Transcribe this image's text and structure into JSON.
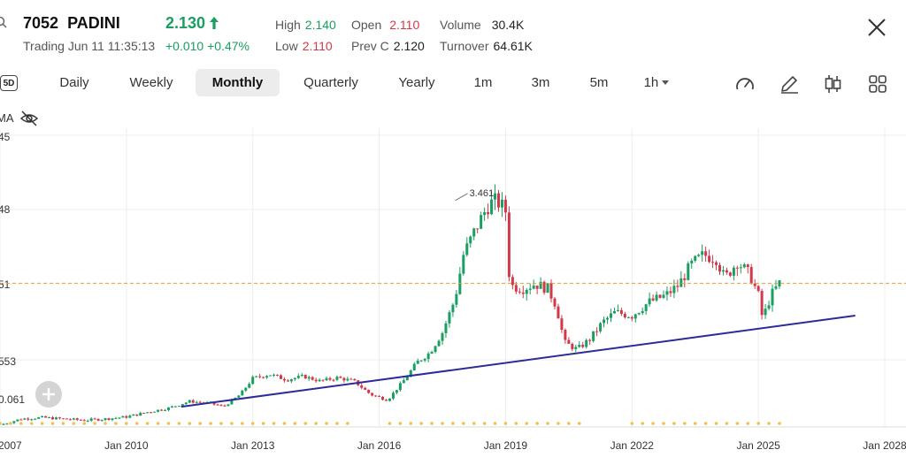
{
  "header": {
    "code": "7052",
    "name": "PADINI",
    "price": "2.130",
    "status": "Trading",
    "datetime": "Jun 11 11:35:13",
    "change": "+0.010",
    "change_pct": "+0.47%",
    "stats": {
      "high_label": "High",
      "high": "2.140",
      "low_label": "Low",
      "low": "2.110",
      "open_label": "Open",
      "open": "2.110",
      "prevc_label": "Prev C",
      "prevc": "2.120",
      "volume_label": "Volume",
      "volume": "30.4K",
      "turnover_label": "Turnover",
      "turnover": "64.61K"
    }
  },
  "toolbar": {
    "badge": "5D",
    "tabs": [
      "Daily",
      "Weekly",
      "Monthly",
      "Quarterly",
      "Yearly",
      "1m",
      "3m",
      "5m",
      "1h"
    ],
    "active_tab": "Monthly"
  },
  "indicator": {
    "label": "MA"
  },
  "colors": {
    "up": "#1a9e61",
    "down": "#d1394a",
    "trendline": "#2b2c96",
    "price_line": "#e3a33a",
    "grid": "#ececec"
  },
  "chart_data": {
    "type": "candlestick",
    "x_ticks": [
      "Jan 2007",
      "Jan 2010",
      "Jan 2013",
      "Jan 2016",
      "Jan 2019",
      "Jan 2022",
      "Jan 2025",
      "Jan 2028"
    ],
    "y_ticks": [
      "45",
      "48",
      "51",
      "553",
      "0.061"
    ],
    "xlim": [
      2007.0,
      2028.5
    ],
    "ylim": [
      0.0,
      4.1
    ],
    "annotation": {
      "label": "3.461",
      "x": 2018.1,
      "y": 3.461
    },
    "current_price": 2.13,
    "trendline": [
      {
        "x": 2011.3,
        "y": 0.3
      },
      {
        "x": 2027.3,
        "y": 1.65
      }
    ],
    "closes": [
      {
        "x": 2007.0,
        "v": 0.03
      },
      {
        "x": 2007.5,
        "v": 0.12
      },
      {
        "x": 2008.0,
        "v": 0.14
      },
      {
        "x": 2008.5,
        "v": 0.12
      },
      {
        "x": 2009.0,
        "v": 0.1
      },
      {
        "x": 2009.5,
        "v": 0.12
      },
      {
        "x": 2010.0,
        "v": 0.15
      },
      {
        "x": 2010.5,
        "v": 0.22
      },
      {
        "x": 2011.0,
        "v": 0.28
      },
      {
        "x": 2011.5,
        "v": 0.38
      },
      {
        "x": 2012.0,
        "v": 0.35
      },
      {
        "x": 2012.3,
        "v": 0.3
      },
      {
        "x": 2012.7,
        "v": 0.48
      },
      {
        "x": 2013.0,
        "v": 0.72
      },
      {
        "x": 2013.4,
        "v": 0.78
      },
      {
        "x": 2013.8,
        "v": 0.7
      },
      {
        "x": 2014.2,
        "v": 0.75
      },
      {
        "x": 2014.6,
        "v": 0.68
      },
      {
        "x": 2015.0,
        "v": 0.73
      },
      {
        "x": 2015.4,
        "v": 0.68
      },
      {
        "x": 2015.8,
        "v": 0.48
      },
      {
        "x": 2016.2,
        "v": 0.4
      },
      {
        "x": 2016.6,
        "v": 0.7
      },
      {
        "x": 2016.9,
        "v": 0.96
      },
      {
        "x": 2017.2,
        "v": 1.1
      },
      {
        "x": 2017.5,
        "v": 1.4
      },
      {
        "x": 2017.8,
        "v": 1.9
      },
      {
        "x": 2018.0,
        "v": 2.55
      },
      {
        "x": 2018.3,
        "v": 2.95
      },
      {
        "x": 2018.6,
        "v": 3.3
      },
      {
        "x": 2018.8,
        "v": 3.35
      },
      {
        "x": 2019.0,
        "v": 3.2
      },
      {
        "x": 2019.1,
        "v": 2.1
      },
      {
        "x": 2019.4,
        "v": 2.05
      },
      {
        "x": 2019.7,
        "v": 2.12
      },
      {
        "x": 2020.0,
        "v": 2.05
      },
      {
        "x": 2020.2,
        "v": 1.8
      },
      {
        "x": 2020.4,
        "v": 1.25
      },
      {
        "x": 2020.7,
        "v": 1.15
      },
      {
        "x": 2021.0,
        "v": 1.3
      },
      {
        "x": 2021.3,
        "v": 1.55
      },
      {
        "x": 2021.6,
        "v": 1.7
      },
      {
        "x": 2022.0,
        "v": 1.65
      },
      {
        "x": 2022.4,
        "v": 1.85
      },
      {
        "x": 2022.8,
        "v": 1.95
      },
      {
        "x": 2023.1,
        "v": 2.1
      },
      {
        "x": 2023.4,
        "v": 2.4
      },
      {
        "x": 2023.7,
        "v": 2.55
      },
      {
        "x": 2024.0,
        "v": 2.5
      },
      {
        "x": 2024.2,
        "v": 2.2
      },
      {
        "x": 2024.5,
        "v": 2.45
      },
      {
        "x": 2024.8,
        "v": 2.25
      },
      {
        "x": 2025.0,
        "v": 1.95
      },
      {
        "x": 2025.1,
        "v": 1.6
      },
      {
        "x": 2025.3,
        "v": 1.95
      },
      {
        "x": 2025.5,
        "v": 2.13
      }
    ],
    "period_markers_y": 0.0
  }
}
